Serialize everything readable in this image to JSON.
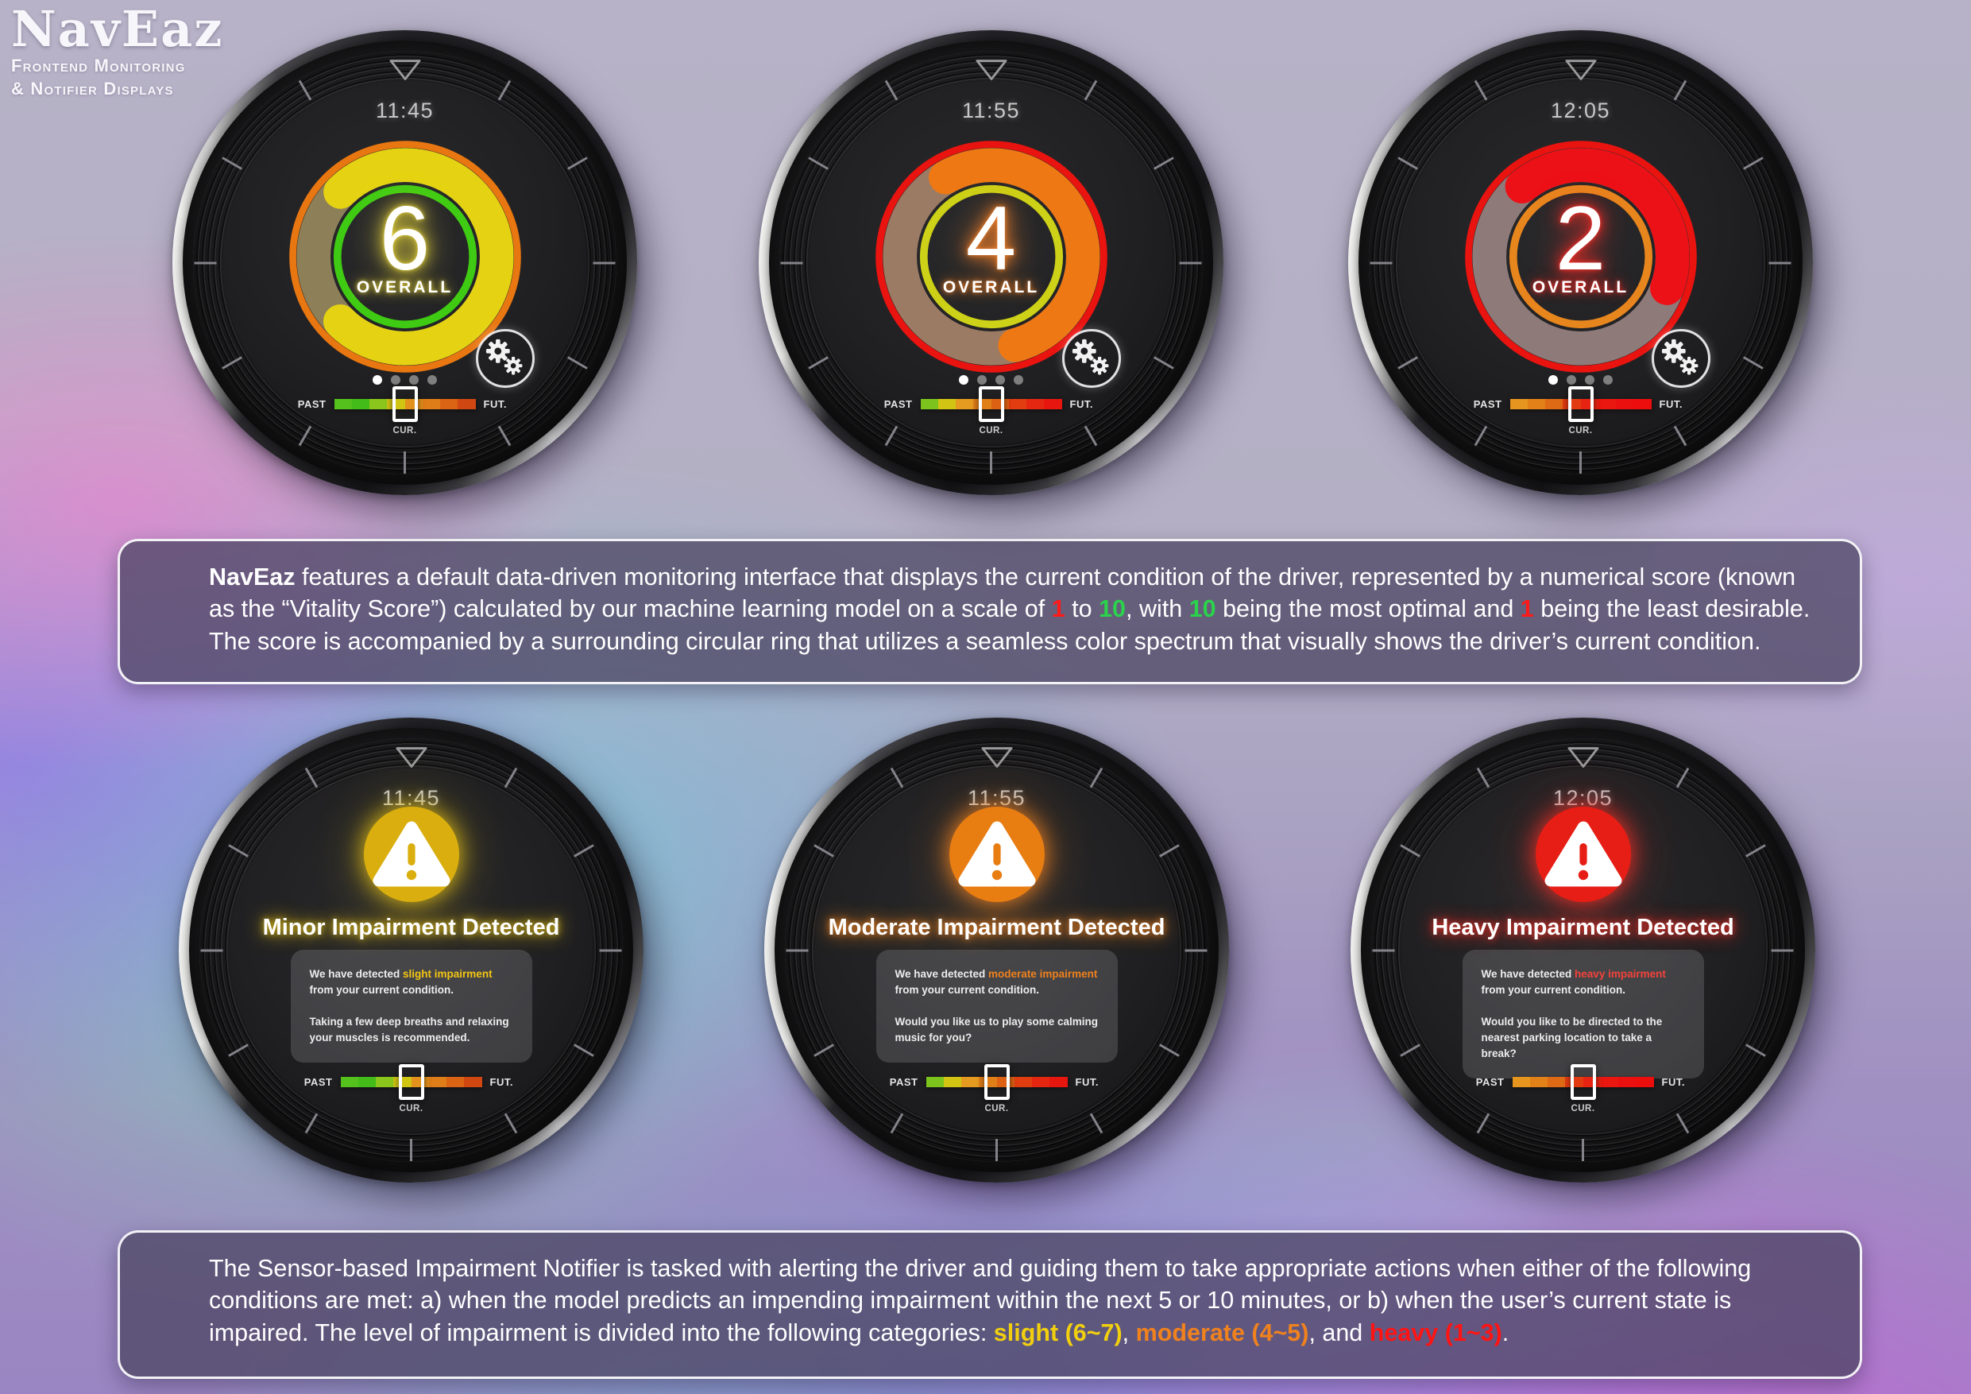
{
  "logo": {
    "title": "NavEaz",
    "subtitle_line1": "Frontend Monitoring",
    "subtitle_line2": "& Notifier Displays"
  },
  "panel_vitality": {
    "text_parts": [
      {
        "t": "NavEaz",
        "b": true
      },
      {
        "t": " features a default data-driven monitoring interface that displays the current condition of the driver, represented by a numerical score (known as the “Vitality Score”) calculated by our machine learning model on a scale of "
      },
      {
        "t": "1",
        "c": "#ff1a1a",
        "b": true
      },
      {
        "t": " to "
      },
      {
        "t": "10",
        "c": "#2bd24b",
        "b": true
      },
      {
        "t": ", with "
      },
      {
        "t": "10",
        "c": "#2bd24b",
        "b": true
      },
      {
        "t": " being the most optimal and "
      },
      {
        "t": "1",
        "c": "#ff1a1a",
        "b": true
      },
      {
        "t": " being the least desirable. The score is accompanied by a surrounding circular ring that utilizes a seamless color spectrum that visually shows the driver’s current condition."
      }
    ]
  },
  "panel_notifier": {
    "text_parts": [
      {
        "t": "The Sensor-based Impairment Notifier is tasked with alerting the driver and guiding them to take appropriate actions when either of the following conditions are met: a) when the model predicts an impending impairment within the next 5 or 10 minutes, or b) when the user’s current state is impaired. The level of impairment is divided into the following categories: "
      },
      {
        "t": "slight (6~7)",
        "c": "#f2cf0e",
        "b": true
      },
      {
        "t": ", "
      },
      {
        "t": "moderate (4~5)",
        "c": "#f0821e",
        "b": true
      },
      {
        "t": ", and "
      },
      {
        "t": "heavy (1~3)",
        "c": "#ff1414",
        "b": true
      },
      {
        "t": "."
      }
    ]
  },
  "score_watches": [
    {
      "time": "11:45",
      "score": "6",
      "overall_label": "OVERALL",
      "glow": "#e8d63c",
      "ring": {
        "outer": "#e87611",
        "band": "#8d8058",
        "arc": "#e5d313",
        "inner": "#3fcb13",
        "start_deg": 315,
        "sweep_deg": 270
      },
      "dots": {
        "count": 4,
        "active": 0
      },
      "timeline": {
        "past_label": "PAST",
        "future_label": "FUT.",
        "current_label": "CUR.",
        "segments": [
          "#54c11c",
          "#43bc19",
          "#8ac61b",
          "#d0c513",
          "#e2911c",
          "#df7d18",
          "#db6414",
          "#d14711"
        ]
      }
    },
    {
      "time": "11:55",
      "score": "4",
      "overall_label": "OVERALL",
      "glow": "#f5822a",
      "ring": {
        "outer": "#e91310",
        "band": "#9c7b64",
        "arc": "#ee7814",
        "inner": "#cdd117",
        "start_deg": 330,
        "sweep_deg": 195
      },
      "dots": {
        "count": 4,
        "active": 0
      },
      "timeline": {
        "past_label": "PAST",
        "future_label": "FUT.",
        "current_label": "CUR.",
        "segments": [
          "#7cc41d",
          "#d2c413",
          "#e59b1f",
          "#e07e18",
          "#dc6113",
          "#e13d10",
          "#e52711",
          "#e71710"
        ]
      }
    },
    {
      "time": "12:05",
      "score": "2",
      "overall_label": "OVERALL",
      "glow": "#ff2e28",
      "ring": {
        "outer": "#e91310",
        "band": "#8e7b79",
        "arc": "#ec1117",
        "inner": "#e8861e",
        "start_deg": 320,
        "sweep_deg": 150
      },
      "dots": {
        "count": 4,
        "active": 0
      },
      "timeline": {
        "past_label": "PAST",
        "future_label": "FUT.",
        "current_label": "CUR.",
        "segments": [
          "#e6951f",
          "#e38119",
          "#df6a15",
          "#e33b11",
          "#e72311",
          "#e91710",
          "#eb1010",
          "#ec0d0d"
        ]
      }
    }
  ],
  "alert_watches": [
    {
      "time": "11:45",
      "title": "Minor Impairment Detected",
      "icon_color": "#d9ae0e",
      "glow": "#e0bd17",
      "message1_parts": [
        {
          "t": "We have detected "
        },
        {
          "t": "slight impairment",
          "c": "#f4c614"
        },
        {
          "t": " from your current condition."
        }
      ],
      "message2": "Taking a few deep breaths and relaxing your muscles is recommended.",
      "timeline": {
        "past_label": "PAST",
        "future_label": "FUT.",
        "current_label": "CUR.",
        "segments": [
          "#54c11c",
          "#43bc19",
          "#8ac61b",
          "#d0c513",
          "#e2911c",
          "#df7d18",
          "#db6414",
          "#d14711"
        ]
      }
    },
    {
      "time": "11:55",
      "title": "Moderate Impairment Detected",
      "icon_color": "#e87d12",
      "glow": "#ef8322",
      "message1_parts": [
        {
          "t": "We have detected "
        },
        {
          "t": "moderate impairment",
          "c": "#f0811c"
        },
        {
          "t": " from your current condition."
        }
      ],
      "message2": "Would you like us to play some calming music for you?",
      "timeline": {
        "past_label": "PAST",
        "future_label": "FUT.",
        "current_label": "CUR.",
        "segments": [
          "#7cc41d",
          "#d2c413",
          "#e59b1f",
          "#e07e18",
          "#dc6113",
          "#e13d10",
          "#e52711",
          "#e71710"
        ]
      }
    },
    {
      "time": "12:05",
      "title": "Heavy Impairment Detected",
      "icon_color": "#e61e15",
      "glow": "#f03028",
      "message1_parts": [
        {
          "t": "We have detected "
        },
        {
          "t": "heavy impairment",
          "c": "#f5423a"
        },
        {
          "t": " from your current condition."
        }
      ],
      "message2": "Would you like to be directed to the nearest parking location to take a break?",
      "timeline": {
        "past_label": "PAST",
        "future_label": "FUT.",
        "current_label": "CUR.",
        "segments": [
          "#e6951f",
          "#e38119",
          "#df6a15",
          "#e33b11",
          "#e72311",
          "#e91710",
          "#eb1010",
          "#ec0d0d"
        ]
      }
    }
  ]
}
